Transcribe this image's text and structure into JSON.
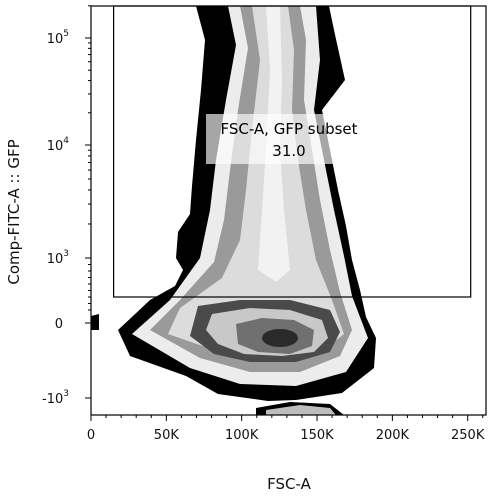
{
  "chart_data": {
    "type": "density",
    "xlabel": "FSC-A",
    "ylabel": "Comp-FITC-A :: GFP",
    "xlim": [
      0,
      262144
    ],
    "x_ticks": [
      {
        "value": 0,
        "label": "0"
      },
      {
        "value": 50000,
        "label": "50K"
      },
      {
        "value": 100000,
        "label": "100K"
      },
      {
        "value": 150000,
        "label": "150K"
      },
      {
        "value": 200000,
        "label": "200K"
      },
      {
        "value": 250000,
        "label": "250K"
      }
    ],
    "y_scale": "biexponential",
    "y_ticks": [
      {
        "value": 100000,
        "base": "10",
        "exp": "5"
      },
      {
        "value": 10000,
        "base": "10",
        "exp": "4"
      },
      {
        "value": 1000,
        "base": "10",
        "exp": "3"
      },
      {
        "value": 0,
        "base": "0",
        "exp": ""
      },
      {
        "value": -1000,
        "base": "-10",
        "exp": "3"
      }
    ],
    "gate": {
      "name": "FSC-A, GFP subset",
      "percent": "31.0",
      "x_range": [
        15000,
        252000
      ],
      "y_min": 400
    }
  }
}
